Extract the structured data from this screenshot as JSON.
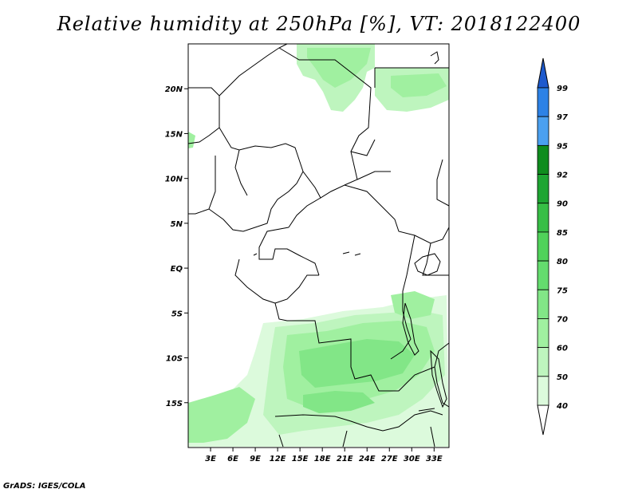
{
  "title": "Relative humidity at 250hPa [%], VT: 2018122400",
  "credit": "GrADS: IGES/COLA",
  "map": {
    "lon_range": [
      0,
      35
    ],
    "lat_range": [
      -20,
      25
    ],
    "lat_ticks": [
      {
        "value": 20,
        "label": "20N"
      },
      {
        "value": 15,
        "label": "15N"
      },
      {
        "value": 10,
        "label": "10N"
      },
      {
        "value": 5,
        "label": "5N"
      },
      {
        "value": 0,
        "label": "EQ"
      },
      {
        "value": -5,
        "label": "5S"
      },
      {
        "value": -10,
        "label": "10S"
      },
      {
        "value": -15,
        "label": "15S"
      }
    ],
    "lon_ticks": [
      {
        "value": 3,
        "label": "3E"
      },
      {
        "value": 6,
        "label": "6E"
      },
      {
        "value": 9,
        "label": "9E"
      },
      {
        "value": 12,
        "label": "12E"
      },
      {
        "value": 15,
        "label": "15E"
      },
      {
        "value": 18,
        "label": "18E"
      },
      {
        "value": 21,
        "label": "21E"
      },
      {
        "value": 24,
        "label": "24E"
      },
      {
        "value": 27,
        "label": "27E"
      },
      {
        "value": 30,
        "label": "30E"
      },
      {
        "value": 33,
        "label": "33E"
      }
    ]
  },
  "colorbar": {
    "levels": [
      {
        "label": "99",
        "color": "#1e5acd"
      },
      {
        "label": "97",
        "color": "#2d82e6"
      },
      {
        "label": "95",
        "color": "#4ba0f0"
      },
      {
        "label": "92",
        "color": "#0f8c1e"
      },
      {
        "label": "90",
        "color": "#1ea532"
      },
      {
        "label": "85",
        "color": "#37be46"
      },
      {
        "label": "80",
        "color": "#50d25a"
      },
      {
        "label": "75",
        "color": "#64dc6e"
      },
      {
        "label": "70",
        "color": "#82e687"
      },
      {
        "label": "60",
        "color": "#a0f0a0"
      },
      {
        "label": "50",
        "color": "#bef5be"
      },
      {
        "label": "40",
        "color": "#dcfadc"
      }
    ],
    "top_color": "#1e5acd",
    "bottom_color": "#ffffff"
  }
}
